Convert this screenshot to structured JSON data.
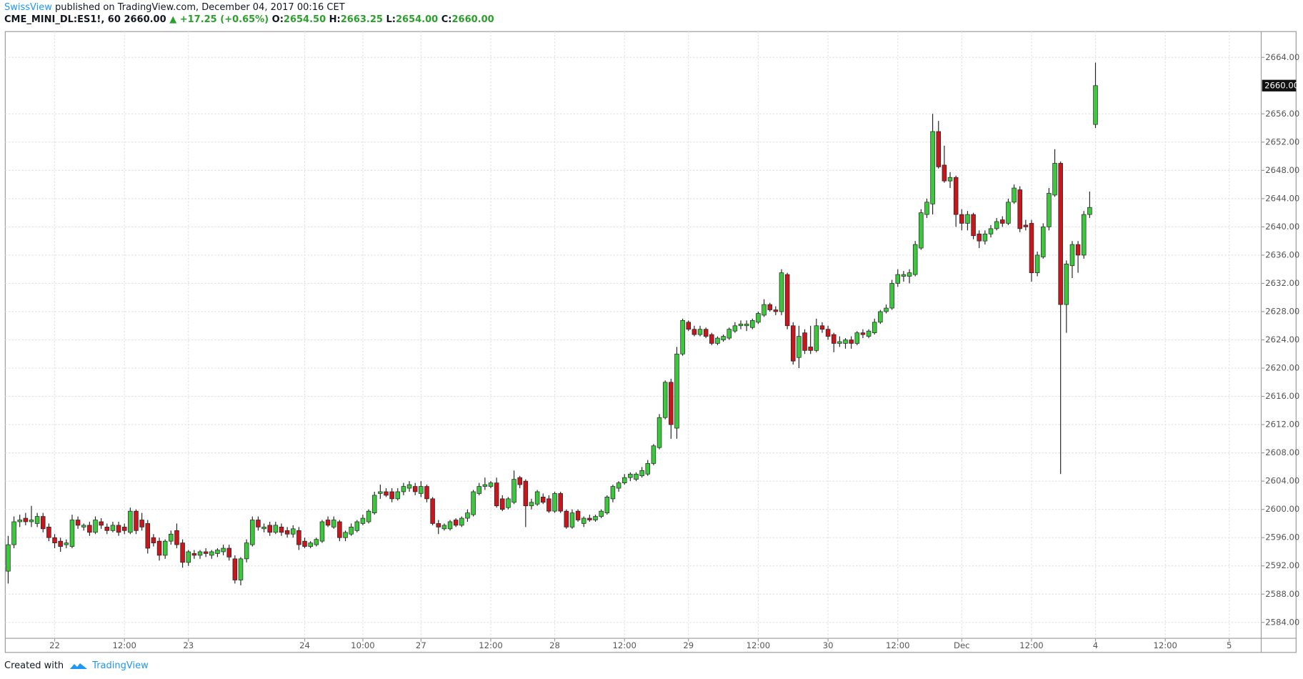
{
  "header": {
    "author": "SwissView",
    "published": "published on TradingView.com, December 04, 2017 00:16 CET",
    "symbol": "CME_MINI_DL:ES1!, 60",
    "price": "2660.00",
    "change": "▲ +17.25 (+0.65%)",
    "ohlc": [
      {
        "label": "O:",
        "value": "2654.50"
      },
      {
        "label": "H:",
        "value": "2663.25"
      },
      {
        "label": "L:",
        "value": "2654.00"
      },
      {
        "label": "C:",
        "value": "2660.00"
      }
    ]
  },
  "footer": {
    "created": "Created with",
    "brand": "TradingView"
  },
  "chart_data": {
    "type": "candlestick",
    "up_color": "#3cc83c",
    "down_color": "#c8161d",
    "grid": true,
    "ylim": [
      2581.75,
      2667.65
    ],
    "xlim": [
      -0.5,
      215.5
    ],
    "yticks": [
      {
        "value": 2584,
        "label": "2584.00"
      },
      {
        "value": 2588,
        "label": "2588.00"
      },
      {
        "value": 2592,
        "label": "2592.00"
      },
      {
        "value": 2596,
        "label": "2596.00"
      },
      {
        "value": 2600,
        "label": "2600.00"
      },
      {
        "value": 2604,
        "label": "2604.00"
      },
      {
        "value": 2608,
        "label": "2608.00"
      },
      {
        "value": 2612,
        "label": "2612.00"
      },
      {
        "value": 2616,
        "label": "2616.00"
      },
      {
        "value": 2620,
        "label": "2620.00"
      },
      {
        "value": 2624,
        "label": "2624.00"
      },
      {
        "value": 2628,
        "label": "2628.00"
      },
      {
        "value": 2632,
        "label": "2632.00"
      },
      {
        "value": 2636,
        "label": "2636.00"
      },
      {
        "value": 2640,
        "label": "2640.00"
      },
      {
        "value": 2644,
        "label": "2644.00"
      },
      {
        "value": 2648,
        "label": "2648.00"
      },
      {
        "value": 2652,
        "label": "2652.00"
      },
      {
        "value": 2656,
        "label": "2656.00"
      },
      {
        "value": 2664,
        "label": "2664.00"
      }
    ],
    "xticks": [
      {
        "value": 8,
        "label": "22"
      },
      {
        "value": 20,
        "label": "12:00"
      },
      {
        "value": 31,
        "label": "23"
      },
      {
        "value": 51,
        "label": "24"
      },
      {
        "value": 61,
        "label": "10:00"
      },
      {
        "value": 71,
        "label": "27"
      },
      {
        "value": 83,
        "label": "12:00"
      },
      {
        "value": 94,
        "label": "28"
      },
      {
        "value": 106,
        "label": "12:00"
      },
      {
        "value": 117,
        "label": "29"
      },
      {
        "value": 129,
        "label": "12:00"
      },
      {
        "value": 141,
        "label": "30"
      },
      {
        "value": 153,
        "label": "12:00"
      },
      {
        "value": 164,
        "label": "Dec"
      },
      {
        "value": 176,
        "label": "12:00"
      },
      {
        "value": 187,
        "label": "4"
      },
      {
        "value": 199,
        "label": "12:00"
      },
      {
        "value": 210,
        "label": "5"
      }
    ],
    "last_price": {
      "value": 2660,
      "label": "2660.00"
    },
    "ohlc": [
      [
        2591.25,
        2596.25,
        2589.5,
        2595
      ],
      [
        2595,
        2599,
        2594.5,
        2598.25
      ],
      [
        2598.25,
        2599.25,
        2597.5,
        2598.5
      ],
      [
        2598.75,
        2599.5,
        2597.75,
        2598.25
      ],
      [
        2598.25,
        2600.5,
        2597.5,
        2598.5
      ],
      [
        2598,
        2599.5,
        2597.5,
        2599
      ],
      [
        2599,
        2599.5,
        2596.75,
        2597.25
      ],
      [
        2597.5,
        2598,
        2595.5,
        2596
      ],
      [
        2596,
        2596.5,
        2594.5,
        2595.25
      ],
      [
        2595.5,
        2596,
        2594,
        2594.75
      ],
      [
        2595,
        2595.75,
        2594.5,
        2595.25
      ],
      [
        2594.75,
        2599.25,
        2594.5,
        2598.5
      ],
      [
        2598.5,
        2599,
        2597.25,
        2597.75
      ],
      [
        2597.5,
        2598,
        2597,
        2597.75
      ],
      [
        2597.75,
        2598.25,
        2596.25,
        2596.75
      ],
      [
        2596.75,
        2599,
        2596.5,
        2598.5
      ],
      [
        2598.25,
        2598.75,
        2597.25,
        2597.75
      ],
      [
        2597.5,
        2598,
        2596.5,
        2597
      ],
      [
        2597,
        2598.25,
        2596.75,
        2597.75
      ],
      [
        2597.75,
        2598.25,
        2596.25,
        2596.75
      ],
      [
        2597.5,
        2598,
        2596.5,
        2597
      ],
      [
        2596.75,
        2600.25,
        2596.5,
        2599.75
      ],
      [
        2599.75,
        2600,
        2596.5,
        2597
      ],
      [
        2598.5,
        2599.5,
        2597,
        2597.5
      ],
      [
        2598,
        2598.5,
        2593.75,
        2594.5
      ],
      [
        2596,
        2596.5,
        2594.75,
        2595.25
      ],
      [
        2595.5,
        2596,
        2592.75,
        2593.5
      ],
      [
        2593.5,
        2595.75,
        2593,
        2595.5
      ],
      [
        2595.5,
        2597,
        2595,
        2596.5
      ],
      [
        2597,
        2598,
        2594.5,
        2595
      ],
      [
        2595.25,
        2595.75,
        2591.75,
        2592.5
      ],
      [
        2592.5,
        2594.25,
        2592,
        2594
      ],
      [
        2593.75,
        2594.25,
        2593,
        2593.5
      ],
      [
        2593.5,
        2594.25,
        2593,
        2594
      ],
      [
        2594,
        2594.5,
        2593.25,
        2593.75
      ],
      [
        2593.5,
        2594.25,
        2593,
        2594
      ],
      [
        2593.75,
        2594.5,
        2593.25,
        2594.25
      ],
      [
        2594,
        2595,
        2593.5,
        2594.5
      ],
      [
        2594.5,
        2595,
        2592.75,
        2593.25
      ],
      [
        2593,
        2593.5,
        2589.5,
        2590
      ],
      [
        2590,
        2593.25,
        2589.25,
        2593
      ],
      [
        2593,
        2595.75,
        2592.5,
        2595.25
      ],
      [
        2595,
        2599,
        2594.75,
        2598.5
      ],
      [
        2598.5,
        2599,
        2597,
        2597.5
      ],
      [
        2597.25,
        2598,
        2596.75,
        2597.5
      ],
      [
        2597.75,
        2598.25,
        2596.25,
        2596.75
      ],
      [
        2596.75,
        2598.25,
        2596.5,
        2597.75
      ],
      [
        2597.5,
        2598,
        2596.25,
        2596.75
      ],
      [
        2597,
        2597.5,
        2596,
        2596.5
      ],
      [
        2596.5,
        2597.75,
        2596,
        2597.25
      ],
      [
        2597,
        2597.5,
        2594.25,
        2595
      ],
      [
        2595.5,
        2596,
        2594.5,
        2594.75
      ],
      [
        2594.75,
        2595.5,
        2594.5,
        2595.25
      ],
      [
        2595,
        2596,
        2594.75,
        2595.75
      ],
      [
        2595.5,
        2598.5,
        2595.25,
        2598.25
      ],
      [
        2598.5,
        2599,
        2597.5,
        2597.75
      ],
      [
        2597.5,
        2599,
        2597.25,
        2598.5
      ],
      [
        2598.25,
        2598.5,
        2595.5,
        2596
      ],
      [
        2596,
        2597,
        2595.5,
        2596.75
      ],
      [
        2596.5,
        2598,
        2596.25,
        2597.5
      ],
      [
        2597,
        2598.5,
        2596.75,
        2598.25
      ],
      [
        2598,
        2599.25,
        2597.75,
        2598.75
      ],
      [
        2598.25,
        2600,
        2598,
        2599.75
      ],
      [
        2599.5,
        2602.5,
        2599.25,
        2602
      ],
      [
        2602.25,
        2603.5,
        2601.5,
        2602.5
      ],
      [
        2602.5,
        2603,
        2601.75,
        2602
      ],
      [
        2602.5,
        2603,
        2601,
        2601.5
      ],
      [
        2601.5,
        2603,
        2601.25,
        2602.5
      ],
      [
        2602.5,
        2603.75,
        2602,
        2603.25
      ],
      [
        2603,
        2604,
        2602.5,
        2603.5
      ],
      [
        2603.25,
        2603.75,
        2602,
        2602.5
      ],
      [
        2602.25,
        2604,
        2601.75,
        2603.25
      ],
      [
        2603.25,
        2603.5,
        2601,
        2601.5
      ],
      [
        2601.5,
        2601.75,
        2597.75,
        2598
      ],
      [
        2598,
        2598.5,
        2596.5,
        2597.5
      ],
      [
        2597.25,
        2598,
        2597,
        2597.75
      ],
      [
        2597.25,
        2598.5,
        2597,
        2598.25
      ],
      [
        2598.5,
        2598.75,
        2597.5,
        2597.75
      ],
      [
        2597.75,
        2599,
        2597.5,
        2598.75
      ],
      [
        2598.75,
        2600,
        2598.25,
        2599.5
      ],
      [
        2599.25,
        2602.75,
        2599,
        2602.5
      ],
      [
        2602.25,
        2603.75,
        2602,
        2603.25
      ],
      [
        2603.25,
        2604.5,
        2602.75,
        2603.5
      ],
      [
        2603.25,
        2604,
        2603,
        2603.75
      ],
      [
        2603.75,
        2604.5,
        2600.25,
        2600.5
      ],
      [
        2601.5,
        2602,
        2599.75,
        2600
      ],
      [
        2600.25,
        2601.75,
        2600,
        2601.5
      ],
      [
        2601,
        2605.5,
        2600.75,
        2604.25
      ],
      [
        2604.5,
        2604.75,
        2603,
        2603.5
      ],
      [
        2604,
        2604.25,
        2597.5,
        2600.5
      ],
      [
        2600.5,
        2601.5,
        2600,
        2601
      ],
      [
        2600.75,
        2602.75,
        2600.5,
        2602.5
      ],
      [
        2601.75,
        2602.25,
        2600.75,
        2601
      ],
      [
        2601.5,
        2602,
        2599.5,
        2599.75
      ],
      [
        2599.75,
        2602.5,
        2599.5,
        2602.25
      ],
      [
        2602.25,
        2602.5,
        2599.5,
        2599.75
      ],
      [
        2599.75,
        2600,
        2597.25,
        2597.5
      ],
      [
        2597.5,
        2600,
        2597.25,
        2599.5
      ],
      [
        2599.75,
        2600,
        2598.25,
        2598.5
      ],
      [
        2598,
        2599,
        2597.5,
        2598.75
      ],
      [
        2598.75,
        2599.25,
        2598.25,
        2598.5
      ],
      [
        2598.5,
        2599.25,
        2598.25,
        2599
      ],
      [
        2599,
        2600,
        2598.75,
        2599.75
      ],
      [
        2599.5,
        2602,
        2599.25,
        2601.75
      ],
      [
        2601.5,
        2603.5,
        2601,
        2603.25
      ],
      [
        2603,
        2604,
        2602.5,
        2603.75
      ],
      [
        2603.75,
        2605,
        2603.5,
        2604.5
      ],
      [
        2604.5,
        2605.25,
        2604,
        2605
      ],
      [
        2604.25,
        2605.25,
        2604,
        2605
      ],
      [
        2604.75,
        2606,
        2604.5,
        2605.5
      ],
      [
        2605,
        2607,
        2604.75,
        2606.5
      ],
      [
        2606.5,
        2609.25,
        2606.25,
        2609
      ],
      [
        2608.75,
        2613.5,
        2608.5,
        2613
      ],
      [
        2613,
        2618.25,
        2612.75,
        2618
      ],
      [
        2618,
        2618.5,
        2610,
        2612
      ],
      [
        2611.5,
        2623,
        2610,
        2622
      ],
      [
        2622,
        2627,
        2621.75,
        2626.75
      ],
      [
        2626.5,
        2626.75,
        2625.25,
        2625.5
      ],
      [
        2625.5,
        2626,
        2624.5,
        2624.75
      ],
      [
        2624.75,
        2626,
        2624.5,
        2625.5
      ],
      [
        2625.5,
        2625.75,
        2624.25,
        2624.5
      ],
      [
        2624.75,
        2625,
        2623.25,
        2623.5
      ],
      [
        2623.5,
        2624.5,
        2623.25,
        2624.25
      ],
      [
        2624,
        2624.75,
        2623.75,
        2624.5
      ],
      [
        2624.25,
        2625.75,
        2624,
        2625.5
      ],
      [
        2625.25,
        2626.5,
        2625,
        2626
      ],
      [
        2626,
        2626.75,
        2625.5,
        2626.25
      ],
      [
        2626,
        2626.75,
        2625.25,
        2626.25
      ],
      [
        2625.75,
        2627,
        2625.5,
        2626.75
      ],
      [
        2626.5,
        2628,
        2626.25,
        2627.75
      ],
      [
        2627.5,
        2629.75,
        2627.25,
        2629
      ],
      [
        2629,
        2629.25,
        2628,
        2628.25
      ],
      [
        2628.25,
        2628.75,
        2627.5,
        2628
      ],
      [
        2628,
        2634,
        2627.5,
        2633.5
      ],
      [
        2633.25,
        2633.5,
        2625.5,
        2626
      ],
      [
        2626,
        2626.5,
        2620.5,
        2621
      ],
      [
        2621.5,
        2626,
        2620,
        2624.5
      ],
      [
        2625,
        2625.5,
        2622,
        2622.5
      ],
      [
        2623,
        2626,
        2622,
        2622.5
      ],
      [
        2622.5,
        2627,
        2622.25,
        2626
      ],
      [
        2626,
        2626.5,
        2625,
        2625.5
      ],
      [
        2625.5,
        2626,
        2624,
        2624.5
      ],
      [
        2624.75,
        2625,
        2622.25,
        2623.5
      ],
      [
        2623.5,
        2624.5,
        2623,
        2623.75
      ],
      [
        2623.5,
        2624.25,
        2622.75,
        2624
      ],
      [
        2624,
        2624.5,
        2622.75,
        2623.5
      ],
      [
        2623.5,
        2625.25,
        2623.25,
        2625
      ],
      [
        2625,
        2625.5,
        2624.25,
        2624.75
      ],
      [
        2624.5,
        2625.5,
        2624.25,
        2625.25
      ],
      [
        2625,
        2627,
        2624.75,
        2626.5
      ],
      [
        2626.5,
        2628.25,
        2626.25,
        2628
      ],
      [
        2628,
        2629,
        2627.75,
        2628.5
      ],
      [
        2628.5,
        2632.5,
        2628.25,
        2632
      ],
      [
        2632,
        2634,
        2631.5,
        2633.25
      ],
      [
        2633,
        2633.75,
        2632.25,
        2633.25
      ],
      [
        2633,
        2634,
        2632,
        2633.5
      ],
      [
        2633.25,
        2638,
        2633,
        2637.5
      ],
      [
        2637,
        2642.5,
        2636.75,
        2642
      ],
      [
        2641.75,
        2644,
        2641.25,
        2643.5
      ],
      [
        2643.25,
        2656,
        2641.75,
        2653.5
      ],
      [
        2653.5,
        2655,
        2648.25,
        2648.5
      ],
      [
        2648.75,
        2651.5,
        2646.25,
        2646.5
      ],
      [
        2646.5,
        2647.75,
        2645.5,
        2647
      ],
      [
        2647,
        2647.25,
        2640,
        2641.75
      ],
      [
        2641.75,
        2642.5,
        2639.5,
        2640.5
      ],
      [
        2640.5,
        2642.25,
        2639.5,
        2641.75
      ],
      [
        2641.75,
        2642,
        2638.25,
        2638.75
      ],
      [
        2639,
        2639.5,
        2637,
        2638
      ],
      [
        2638,
        2639.5,
        2637.5,
        2639
      ],
      [
        2639,
        2640.25,
        2638.5,
        2639.75
      ],
      [
        2639.75,
        2641.25,
        2639.5,
        2640.75
      ],
      [
        2641,
        2641.5,
        2640,
        2640.5
      ],
      [
        2640.5,
        2644,
        2640.25,
        2643.5
      ],
      [
        2643.5,
        2646,
        2643.25,
        2645.5
      ],
      [
        2645.25,
        2645.75,
        2639.25,
        2639.75
      ],
      [
        2640.25,
        2641,
        2639.5,
        2640
      ],
      [
        2640.5,
        2641,
        2632.25,
        2633.5
      ],
      [
        2633.5,
        2636.5,
        2633,
        2636
      ],
      [
        2635.75,
        2640.5,
        2635.5,
        2640
      ],
      [
        2640,
        2645.5,
        2639.5,
        2644.75
      ],
      [
        2644.5,
        2651,
        2644.25,
        2649
      ],
      [
        2649,
        2649.25,
        2605,
        2629
      ],
      [
        2629,
        2635.25,
        2625,
        2634.75
      ],
      [
        2634.5,
        2638,
        2632.75,
        2637.5
      ],
      [
        2637.5,
        2638,
        2633.5,
        2636
      ],
      [
        2636,
        2642.25,
        2635.5,
        2641.75
      ],
      [
        2641.75,
        2645,
        2641.25,
        2642.75
      ],
      [
        2654.5,
        2663.25,
        2654,
        2660
      ]
    ]
  }
}
